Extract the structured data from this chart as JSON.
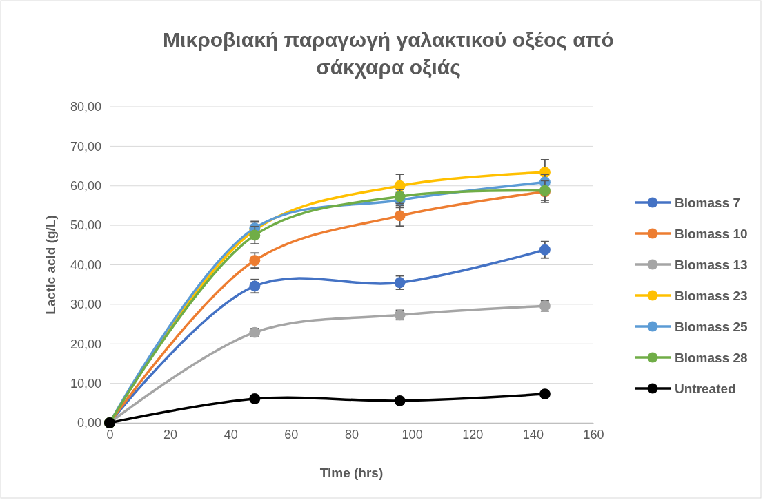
{
  "chart_data": {
    "type": "line",
    "title": "Μικροβιακή παραγωγή γαλακτικού οξέος από σάκχαρα οξιάς",
    "xlabel": "Time (hrs)",
    "ylabel": "Lactic acid (g/L)",
    "x": [
      0,
      48,
      96,
      144
    ],
    "xlim": [
      0,
      160
    ],
    "xticks": [
      0,
      20,
      40,
      60,
      80,
      100,
      120,
      140,
      160
    ],
    "ylim": [
      0,
      80
    ],
    "yticks": [
      {
        "value": 0,
        "label": "0,00"
      },
      {
        "value": 10,
        "label": "10,00"
      },
      {
        "value": 20,
        "label": "20,00"
      },
      {
        "value": 30,
        "label": "30,00"
      },
      {
        "value": 40,
        "label": "40,00"
      },
      {
        "value": 50,
        "label": "50,00"
      },
      {
        "value": 60,
        "label": "60,00"
      },
      {
        "value": 70,
        "label": "70,00"
      },
      {
        "value": 80,
        "label": "80,00"
      }
    ],
    "grid": "y",
    "legend": "right",
    "marker": "circle",
    "line_style": "solid",
    "series": [
      {
        "name": "Biomass 7",
        "color": "#4472c4",
        "values": [
          0,
          34.6,
          35.5,
          43.8
        ],
        "errors": [
          null,
          1.7,
          1.7,
          2.1
        ]
      },
      {
        "name": "Biomass 10",
        "color": "#ed7d31",
        "values": [
          0,
          41.1,
          52.4,
          58.5
        ],
        "errors": [
          null,
          1.9,
          2.6,
          2.7
        ]
      },
      {
        "name": "Biomass 13",
        "color": "#a5a5a5",
        "values": [
          0,
          22.9,
          27.3,
          29.6
        ],
        "errors": [
          null,
          1.0,
          1.2,
          1.3
        ]
      },
      {
        "name": "Biomass 23",
        "color": "#ffc000",
        "values": [
          0,
          48.8,
          60.0,
          63.4
        ],
        "errors": [
          null,
          2.0,
          2.9,
          3.2
        ]
      },
      {
        "name": "Biomass 25",
        "color": "#5b9bd5",
        "values": [
          0,
          49.3,
          56.4,
          60.9
        ],
        "errors": [
          null,
          1.7,
          1.9,
          2.0
        ]
      },
      {
        "name": "Biomass 28",
        "color": "#70ad47",
        "values": [
          0,
          47.5,
          57.3,
          58.8
        ],
        "errors": [
          null,
          2.2,
          1.8,
          2.5
        ]
      },
      {
        "name": "Untreated",
        "color": "#000000",
        "values": [
          0,
          6.1,
          5.6,
          7.3
        ]
      }
    ]
  }
}
